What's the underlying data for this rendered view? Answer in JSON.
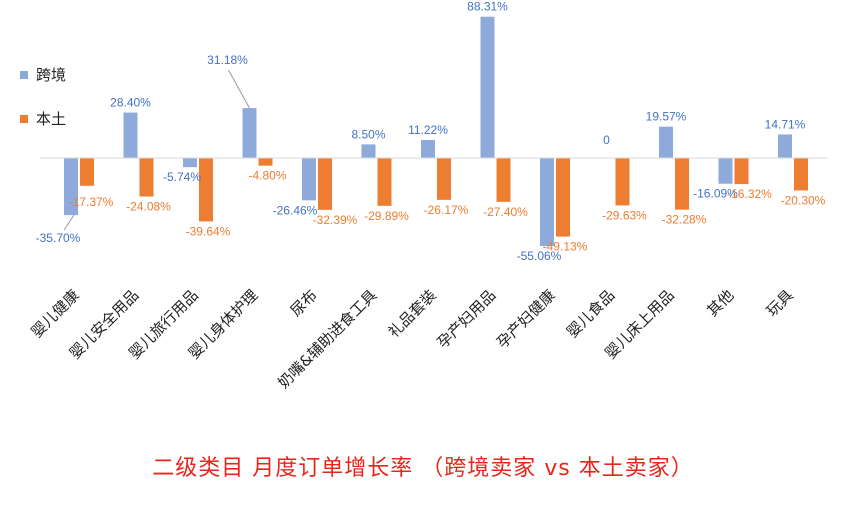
{
  "chart_data": {
    "type": "bar",
    "title": "二级类目 月度订单增长率 （跨境卖家 vs 本土卖家）",
    "categories": [
      "婴儿健康",
      "婴儿安全用品",
      "婴儿旅行用品",
      "婴儿身体护理",
      "尿布",
      "奶嘴&辅助进食工具",
      "礼品套装",
      "孕产妇用品",
      "孕产妇健康",
      "婴儿食品",
      "婴儿床上用品",
      "其他",
      "玩具"
    ],
    "series": [
      {
        "name": "跨境",
        "color": "#8eaadb",
        "label_color": "#4472c4",
        "values": [
          -35.7,
          28.4,
          -5.74,
          31.18,
          -26.46,
          8.5,
          11.22,
          88.31,
          -55.06,
          0,
          19.57,
          -16.09,
          14.71
        ],
        "labels": [
          "-35.70%",
          "28.40%",
          "-5.74%",
          "31.18%",
          "-26.46%",
          "8.50%",
          "11.22%",
          "88.31%",
          "-55.06%",
          "0",
          "19.57%",
          "-16.09%",
          "14.71%"
        ]
      },
      {
        "name": "本土",
        "color": "#ed7d31",
        "label_color": "#ed7d31",
        "values": [
          -17.37,
          -24.08,
          -39.64,
          -4.8,
          -32.39,
          -29.89,
          -26.17,
          -27.4,
          -49.13,
          -29.63,
          -32.28,
          -16.32,
          -20.3
        ],
        "labels": [
          "-17.37%",
          "-24.08%",
          "-39.64%",
          "-4.80%",
          "-32.39%",
          "-29.89%",
          "-26.17%",
          "-27.40%",
          "-49.13%",
          "-29.63%",
          "-32.28%",
          "-16.32%",
          "-20.30%"
        ]
      }
    ],
    "legend_position": "left",
    "grid": false,
    "ylim": [
      -60,
      90
    ]
  }
}
